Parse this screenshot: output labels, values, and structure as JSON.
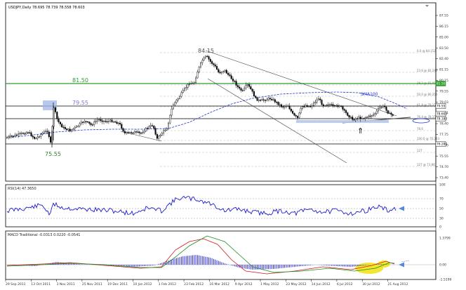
{
  "title": "USDJPY,Daily  78.695 78.739 78.558 78.603",
  "price_axis": [
    "87.55",
    "86.15",
    "85.00",
    "83.50",
    "82.40",
    "81.15",
    "80.15",
    "79.55",
    "79.03",
    "78.71",
    "78.40",
    "77.75",
    "76.20",
    "75.55",
    "74.70",
    "73.40",
    "72.40"
  ],
  "price_tags": [
    {
      "text": "81.50",
      "color": "#2e9e2e"
    },
    {
      "text": "79.55",
      "color": "#222222"
    },
    {
      "text": "78.603",
      "color": "#222222"
    },
    {
      "text": "78.183",
      "color": "#222222"
    },
    {
      "text": "76.283",
      "color": "#222222"
    }
  ],
  "annotations": {
    "high": "84.15",
    "low": "75.55",
    "res1": "81.50",
    "res2": "79.55",
    "sma": "SMA100",
    "arrow": "⇑"
  },
  "fib_levels": [
    "0.0 @ 84.152",
    "23.6 @ 82.249",
    "38.2 @ 81.053",
    "50.0 @ 80.203",
    "61.8 @ 79.156",
    "76.4 @ 78.150",
    "78.6",
    "100.0 @ 76.283",
    "127",
    "127 @ 73.862"
  ],
  "rsi": {
    "label": "RSI(14) 47.3650",
    "axis": [
      "100",
      "70",
      "50",
      "30",
      "0"
    ]
  },
  "macd": {
    "label": "MACD Traditional -0.0313 0.0220 -0.0541",
    "axis": [
      "1.3799",
      "0.00",
      "-1.5199"
    ]
  },
  "dates": [
    "29 Sep 2011",
    "13 Oct 2011",
    "3 Nov 2011",
    "25 Nov 2011",
    "19 Dec 2011",
    "10 Jan 2012",
    "1 Feb 2012",
    "23 Feb 2012",
    "16 Mar 2012",
    "9 Apr 2012",
    "1 May 2012",
    "23 May 2012",
    "14 Jun 2012",
    "6 Jul 2012",
    "30 Jul 2012",
    "21 Aug 2012"
  ],
  "colors": {
    "candle": "#000000",
    "sma": "#2233cc",
    "rsi": "#1a1ad0",
    "macd_hist": "#1a1ad0",
    "macd_line": "#d01a1a",
    "macd_signal": "#1a8a1a",
    "green_line": "#2e9e2e",
    "highlight": "#f2e31a"
  }
}
